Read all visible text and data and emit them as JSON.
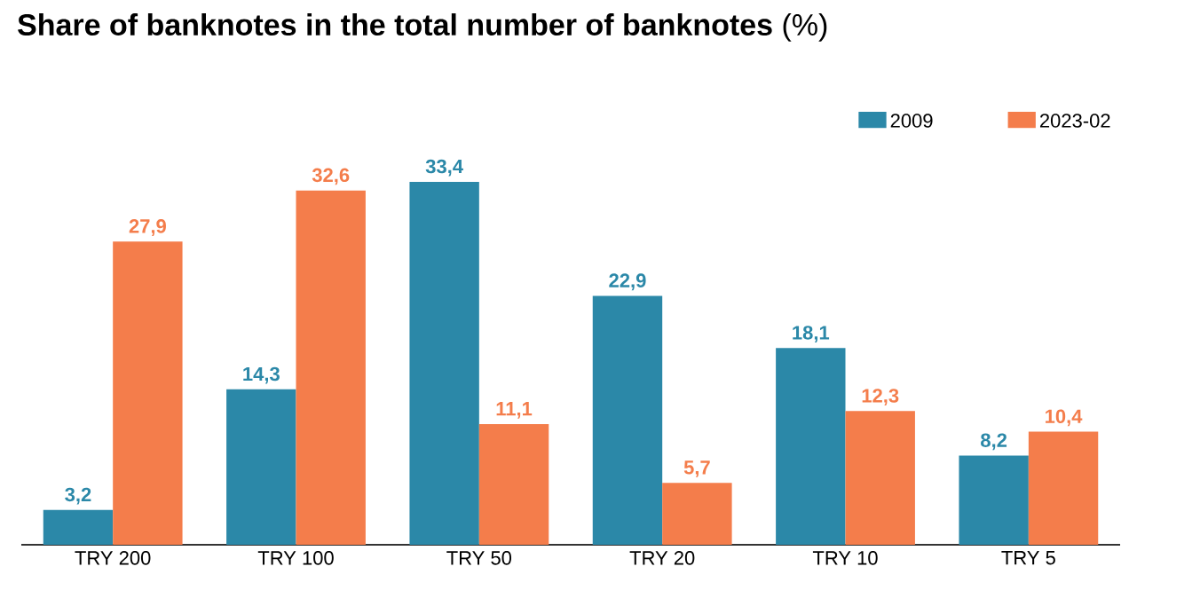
{
  "chart_data": {
    "type": "bar",
    "title": "**Share of banknotes in the total number of banknotes** (%)",
    "categories": [
      "TRY 200",
      "TRY 100",
      "TRY 50",
      "TRY 20",
      "TRY 10",
      "TRY 5"
    ],
    "series": [
      {
        "name": "2009",
        "color": "#2b88a8",
        "values": [
          3.2,
          14.3,
          33.4,
          22.9,
          18.1,
          8.2
        ],
        "value_labels": [
          "3,2",
          "14,3",
          "33,4",
          "22,9",
          "18,1",
          "8,2"
        ]
      },
      {
        "name": "2023-02",
        "color": "#f47d4b",
        "values": [
          27.9,
          32.6,
          11.1,
          5.7,
          12.3,
          10.4
        ],
        "value_labels": [
          "27,9",
          "32,6",
          "11,1",
          "5,7",
          "12,3",
          "10,4"
        ]
      }
    ],
    "legend": "top right"
  }
}
